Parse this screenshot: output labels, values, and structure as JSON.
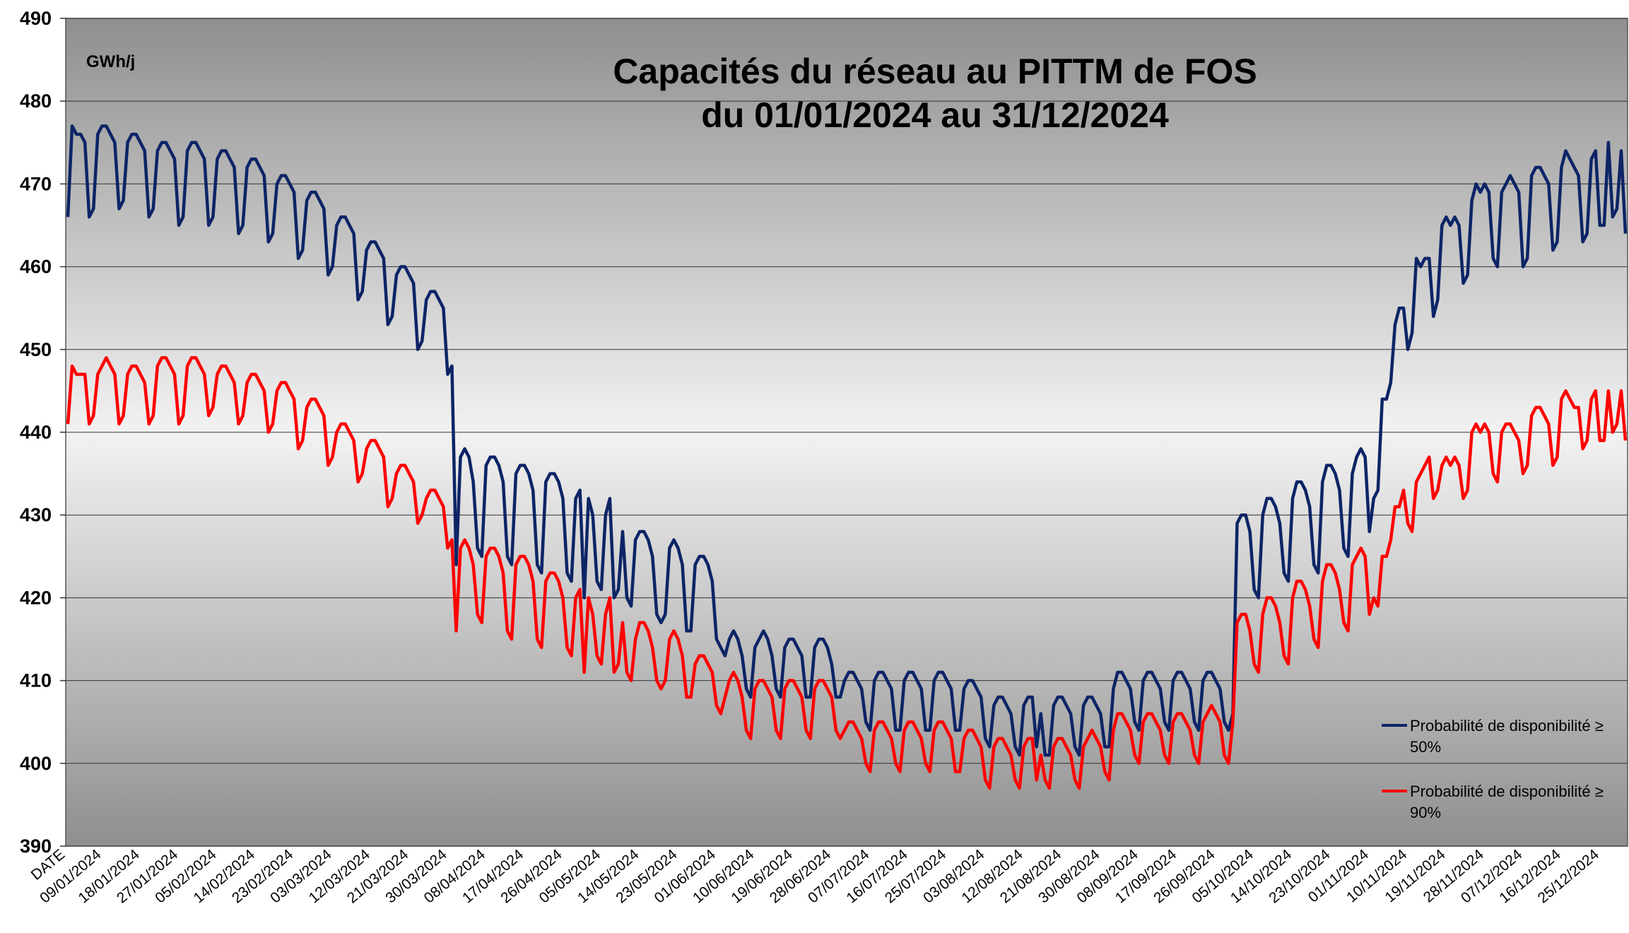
{
  "chart_data": {
    "type": "line",
    "title": "Capacités du réseau au PITTM de FOS",
    "subtitle": "du 01/01/2024 au 31/12/2024",
    "y_unit": "GWh/j",
    "x_label": "DATE",
    "ylim": [
      390,
      490
    ],
    "yticks": [
      390,
      400,
      410,
      420,
      430,
      440,
      450,
      460,
      470,
      480,
      490
    ],
    "grid": true,
    "legend": "lower right",
    "categories": [
      null,
      null,
      null,
      null,
      null,
      null,
      null,
      null,
      "09/01/2024",
      null,
      null,
      null,
      null,
      null,
      null,
      null,
      null,
      "18/01/2024",
      null,
      null,
      null,
      null,
      null,
      null,
      null,
      null,
      "27/01/2024",
      null,
      null,
      null,
      null,
      null,
      null,
      null,
      null,
      "05/02/2024",
      null,
      null,
      null,
      null,
      null,
      null,
      null,
      null,
      "14/02/2024",
      null,
      null,
      null,
      null,
      null,
      null,
      null,
      null,
      "23/02/2024",
      null,
      null,
      null,
      null,
      null,
      null,
      null,
      null,
      "03/03/2024",
      null,
      null,
      null,
      null,
      null,
      null,
      null,
      null,
      "12/03/2024",
      null,
      null,
      null,
      null,
      null,
      null,
      null,
      null,
      "21/03/2024",
      null,
      null,
      null,
      null,
      null,
      null,
      null,
      null,
      "30/03/2024",
      null,
      null,
      null,
      null,
      null,
      null,
      null,
      null,
      "08/04/2024",
      null,
      null,
      null,
      null,
      null,
      null,
      null,
      null,
      "17/04/2024",
      null,
      null,
      null,
      null,
      null,
      null,
      null,
      null,
      "26/04/2024",
      null,
      null,
      null,
      null,
      null,
      null,
      null,
      null,
      "05/05/2024",
      null,
      null,
      null,
      null,
      null,
      null,
      null,
      null,
      "14/05/2024",
      null,
      null,
      null,
      null,
      null,
      null,
      null,
      null,
      "23/05/2024",
      null,
      null,
      null,
      null,
      null,
      null,
      null,
      null,
      "01/06/2024",
      null,
      null,
      null,
      null,
      null,
      null,
      null,
      null,
      "10/06/2024",
      null,
      null,
      null,
      null,
      null,
      null,
      null,
      null,
      "19/06/2024",
      null,
      null,
      null,
      null,
      null,
      null,
      null,
      null,
      "28/06/2024",
      null,
      null,
      null,
      null,
      null,
      null,
      null,
      null,
      "07/07/2024",
      null,
      null,
      null,
      null,
      null,
      null,
      null,
      null,
      "16/07/2024",
      null,
      null,
      null,
      null,
      null,
      null,
      null,
      null,
      "25/07/2024",
      null,
      null,
      null,
      null,
      null,
      null,
      null,
      null,
      "03/08/2024",
      null,
      null,
      null,
      null,
      null,
      null,
      null,
      null,
      "12/08/2024",
      null,
      null,
      null,
      null,
      null,
      null,
      null,
      null,
      "21/08/2024",
      null,
      null,
      null,
      null,
      null,
      null,
      null,
      null,
      "30/08/2024",
      null,
      null,
      null,
      null,
      null,
      null,
      null,
      null,
      "08/09/2024",
      null,
      null,
      null,
      null,
      null,
      null,
      null,
      null,
      "17/09/2024",
      null,
      null,
      null,
      null,
      null,
      null,
      null,
      null,
      "26/09/2024",
      null,
      null,
      null,
      null,
      null,
      null,
      null,
      null,
      "05/10/2024",
      null,
      null,
      null,
      null,
      null,
      null,
      null,
      null,
      "14/10/2024",
      null,
      null,
      null,
      null,
      null,
      null,
      null,
      null,
      "23/10/2024",
      null,
      null,
      null,
      null,
      null,
      null,
      null,
      null,
      "01/11/2024",
      null,
      null,
      null,
      null,
      null,
      null,
      null,
      null,
      "10/11/2024",
      null,
      null,
      null,
      null,
      null,
      null,
      null,
      null,
      "19/11/2024",
      null,
      null,
      null,
      null,
      null,
      null,
      null,
      null,
      "28/11/2024",
      null,
      null,
      null,
      null,
      null,
      null,
      null,
      null,
      "07/12/2024",
      null,
      null,
      null,
      null,
      null,
      null,
      null,
      null,
      "16/12/2024",
      null,
      null,
      null,
      null,
      null,
      null,
      null,
      null,
      "25/12/2024",
      null,
      null,
      null,
      null,
      null,
      null
    ],
    "series": [
      {
        "name": "Probabilité de disponibilité ≥ 50%",
        "color": "#0d2466",
        "values": [
          466,
          477,
          476,
          476,
          475,
          466,
          467,
          476,
          477,
          477,
          476,
          475,
          467,
          468,
          475,
          476,
          476,
          475,
          474,
          466,
          467,
          474,
          475,
          475,
          474,
          473,
          465,
          466,
          474,
          475,
          475,
          474,
          473,
          465,
          466,
          473,
          474,
          474,
          473,
          472,
          464,
          465,
          472,
          473,
          473,
          472,
          471,
          463,
          464,
          470,
          471,
          471,
          470,
          469,
          461,
          462,
          468,
          469,
          469,
          468,
          467,
          459,
          460,
          465,
          466,
          466,
          465,
          464,
          456,
          457,
          462,
          463,
          463,
          462,
          461,
          453,
          454,
          459,
          460,
          460,
          459,
          458,
          450,
          451,
          456,
          457,
          457,
          456,
          455,
          447,
          448,
          424,
          437,
          438,
          437,
          434,
          426,
          425,
          436,
          437,
          437,
          436,
          434,
          425,
          424,
          435,
          436,
          436,
          435,
          433,
          424,
          423,
          434,
          435,
          435,
          434,
          432,
          423,
          422,
          432,
          433,
          420,
          432,
          430,
          422,
          421,
          430,
          432,
          420,
          421,
          428,
          420,
          419,
          427,
          428,
          428,
          427,
          425,
          418,
          417,
          418,
          426,
          427,
          426,
          424,
          416,
          416,
          424,
          425,
          425,
          424,
          422,
          415,
          414,
          413,
          415,
          416,
          415,
          413,
          409,
          408,
          414,
          415,
          416,
          415,
          413,
          409,
          408,
          414,
          415,
          415,
          414,
          413,
          408,
          408,
          414,
          415,
          415,
          414,
          412,
          408,
          408,
          410,
          411,
          411,
          410,
          409,
          405,
          404,
          410,
          411,
          411,
          410,
          409,
          404,
          404,
          410,
          411,
          411,
          410,
          409,
          404,
          404,
          410,
          411,
          411,
          410,
          409,
          404,
          404,
          409,
          410,
          410,
          409,
          408,
          403,
          402,
          407,
          408,
          408,
          407,
          406,
          402,
          401,
          407,
          408,
          408,
          402,
          406,
          401,
          401,
          407,
          408,
          408,
          407,
          406,
          402,
          401,
          407,
          408,
          408,
          407,
          406,
          402,
          402,
          409,
          411,
          411,
          410,
          409,
          405,
          404,
          410,
          411,
          411,
          410,
          409,
          405,
          404,
          410,
          411,
          411,
          410,
          409,
          405,
          404,
          410,
          411,
          411,
          410,
          409,
          405,
          404,
          406,
          429,
          430,
          430,
          428,
          421,
          420,
          430,
          432,
          432,
          431,
          429,
          423,
          422,
          432,
          434,
          434,
          433,
          431,
          424,
          423,
          434,
          436,
          436,
          435,
          433,
          426,
          425,
          435,
          437,
          438,
          437,
          428,
          432,
          433,
          444,
          444,
          446,
          453,
          455,
          455,
          450,
          452,
          461,
          460,
          461,
          461,
          454,
          456,
          465,
          466,
          465,
          466,
          465,
          458,
          459,
          468,
          470,
          469,
          470,
          469,
          461,
          460,
          469,
          470,
          471,
          470,
          469,
          460,
          461,
          471,
          472,
          472,
          471,
          470,
          462,
          463,
          472,
          474,
          473,
          472,
          471,
          463,
          464,
          473,
          474,
          465,
          465,
          475,
          466,
          467,
          474,
          464
        ]
      },
      {
        "name": "Probabilité de disponibilité ≥ 90%",
        "color": "#ff0000",
        "values": [
          441,
          448,
          447,
          447,
          447,
          441,
          442,
          447,
          448,
          449,
          448,
          447,
          441,
          442,
          447,
          448,
          448,
          447,
          446,
          441,
          442,
          448,
          449,
          449,
          448,
          447,
          441,
          442,
          448,
          449,
          449,
          448,
          447,
          442,
          443,
          447,
          448,
          448,
          447,
          446,
          441,
          442,
          446,
          447,
          447,
          446,
          445,
          440,
          441,
          445,
          446,
          446,
          445,
          444,
          438,
          439,
          443,
          444,
          444,
          443,
          442,
          436,
          437,
          440,
          441,
          441,
          440,
          439,
          434,
          435,
          438,
          439,
          439,
          438,
          437,
          431,
          432,
          435,
          436,
          436,
          435,
          434,
          429,
          430,
          432,
          433,
          433,
          432,
          431,
          426,
          427,
          416,
          426,
          427,
          426,
          424,
          418,
          417,
          425,
          426,
          426,
          425,
          423,
          416,
          415,
          424,
          425,
          425,
          424,
          422,
          415,
          414,
          422,
          423,
          423,
          422,
          420,
          414,
          413,
          420,
          421,
          411,
          420,
          418,
          413,
          412,
          418,
          420,
          411,
          412,
          417,
          411,
          410,
          415,
          417,
          417,
          416,
          414,
          410,
          409,
          410,
          415,
          416,
          415,
          413,
          408,
          408,
          412,
          413,
          413,
          412,
          411,
          407,
          406,
          408,
          410,
          411,
          410,
          408,
          404,
          403,
          409,
          410,
          410,
          409,
          408,
          404,
          403,
          409,
          410,
          410,
          409,
          408,
          404,
          403,
          409,
          410,
          410,
          409,
          408,
          404,
          403,
          404,
          405,
          405,
          404,
          403,
          400,
          399,
          404,
          405,
          405,
          404,
          403,
          400,
          399,
          404,
          405,
          405,
          404,
          403,
          400,
          399,
          404,
          405,
          405,
          404,
          403,
          399,
          399,
          403,
          404,
          404,
          403,
          402,
          398,
          397,
          402,
          403,
          403,
          402,
          401,
          398,
          397,
          402,
          403,
          403,
          398,
          401,
          398,
          397,
          402,
          403,
          403,
          402,
          401,
          398,
          397,
          402,
          403,
          404,
          403,
          402,
          399,
          398,
          404,
          406,
          406,
          405,
          404,
          401,
          400,
          405,
          406,
          406,
          405,
          404,
          401,
          400,
          405,
          406,
          406,
          405,
          404,
          401,
          400,
          405,
          406,
          407,
          406,
          405,
          401,
          400,
          405,
          417,
          418,
          418,
          416,
          412,
          411,
          418,
          420,
          420,
          419,
          417,
          413,
          412,
          420,
          422,
          422,
          421,
          419,
          415,
          414,
          422,
          424,
          424,
          423,
          421,
          417,
          416,
          424,
          425,
          426,
          425,
          418,
          420,
          419,
          425,
          425,
          427,
          431,
          431,
          433,
          429,
          428,
          434,
          435,
          436,
          437,
          432,
          433,
          436,
          437,
          436,
          437,
          436,
          432,
          433,
          440,
          441,
          440,
          441,
          440,
          435,
          434,
          440,
          441,
          441,
          440,
          439,
          435,
          436,
          442,
          443,
          443,
          442,
          441,
          436,
          437,
          444,
          445,
          444,
          443,
          443,
          438,
          439,
          444,
          445,
          439,
          439,
          445,
          440,
          441,
          445,
          439
        ]
      }
    ]
  }
}
